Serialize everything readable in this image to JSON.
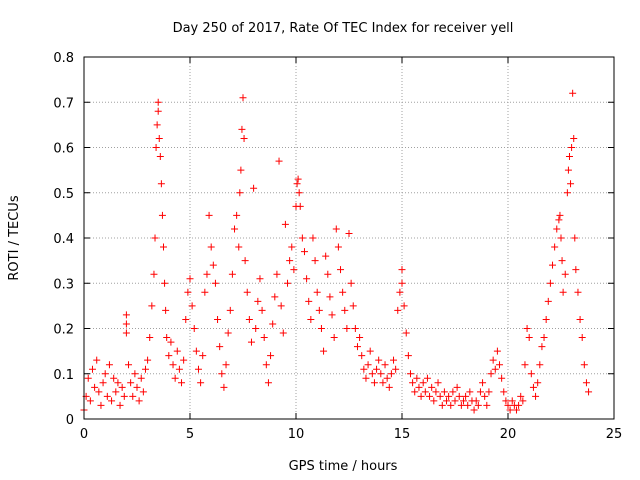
{
  "chart_data": {
    "type": "scatter",
    "title": "Day 250 of 2017, Rate Of TEC Index for receiver yell",
    "xlabel": "GPS time / hours",
    "ylabel": "ROTI / TECUs",
    "xlim": [
      0,
      25
    ],
    "ylim": [
      0,
      0.8
    ],
    "xticks": [
      0,
      5,
      10,
      15,
      20,
      25
    ],
    "xtick_labels": [
      "0",
      "5",
      "10",
      "15",
      "20",
      "25"
    ],
    "yticks": [
      0,
      0.1,
      0.2,
      0.3,
      0.4,
      0.5,
      0.6,
      0.7,
      0.8
    ],
    "ytick_labels": [
      "0",
      "0.1",
      "0.2",
      "0.3",
      "0.4",
      "0.5",
      "0.6",
      "0.7",
      "0.8"
    ],
    "grid": true,
    "marker": "plus",
    "color": "#ff0000",
    "series": [
      {
        "points": [
          [
            0.0,
            0.02
          ],
          [
            0.1,
            0.05
          ],
          [
            0.2,
            0.09
          ],
          [
            0.3,
            0.04
          ],
          [
            0.4,
            0.11
          ],
          [
            0.5,
            0.07
          ],
          [
            0.6,
            0.13
          ],
          [
            0.7,
            0.06
          ],
          [
            0.8,
            0.03
          ],
          [
            0.9,
            0.08
          ],
          [
            1.0,
            0.1
          ],
          [
            1.1,
            0.05
          ],
          [
            1.2,
            0.12
          ],
          [
            1.3,
            0.04
          ],
          [
            1.4,
            0.09
          ],
          [
            1.5,
            0.06
          ],
          [
            1.6,
            0.08
          ],
          [
            1.7,
            0.03
          ],
          [
            1.8,
            0.07
          ],
          [
            1.9,
            0.05
          ],
          [
            2.0,
            0.21
          ],
          [
            2.0,
            0.23
          ],
          [
            2.0,
            0.19
          ],
          [
            2.1,
            0.12
          ],
          [
            2.2,
            0.08
          ],
          [
            2.3,
            0.05
          ],
          [
            2.4,
            0.1
          ],
          [
            2.5,
            0.07
          ],
          [
            2.6,
            0.04
          ],
          [
            2.7,
            0.09
          ],
          [
            2.8,
            0.06
          ],
          [
            2.9,
            0.11
          ],
          [
            3.0,
            0.13
          ],
          [
            3.1,
            0.18
          ],
          [
            3.2,
            0.25
          ],
          [
            3.3,
            0.32
          ],
          [
            3.35,
            0.4
          ],
          [
            3.4,
            0.6
          ],
          [
            3.45,
            0.65
          ],
          [
            3.5,
            0.7
          ],
          [
            3.5,
            0.68
          ],
          [
            3.55,
            0.62
          ],
          [
            3.6,
            0.58
          ],
          [
            3.65,
            0.52
          ],
          [
            3.7,
            0.45
          ],
          [
            3.75,
            0.38
          ],
          [
            3.8,
            0.3
          ],
          [
            3.85,
            0.24
          ],
          [
            3.9,
            0.18
          ],
          [
            4.0,
            0.14
          ],
          [
            4.1,
            0.17
          ],
          [
            4.2,
            0.12
          ],
          [
            4.3,
            0.09
          ],
          [
            4.4,
            0.15
          ],
          [
            4.5,
            0.11
          ],
          [
            4.6,
            0.08
          ],
          [
            4.7,
            0.13
          ],
          [
            4.8,
            0.22
          ],
          [
            4.9,
            0.28
          ],
          [
            5.0,
            0.31
          ],
          [
            5.1,
            0.25
          ],
          [
            5.2,
            0.2
          ],
          [
            5.3,
            0.15
          ],
          [
            5.4,
            0.11
          ],
          [
            5.5,
            0.08
          ],
          [
            5.6,
            0.14
          ],
          [
            5.7,
            0.28
          ],
          [
            5.8,
            0.32
          ],
          [
            5.9,
            0.45
          ],
          [
            6.0,
            0.38
          ],
          [
            6.1,
            0.34
          ],
          [
            6.2,
            0.3
          ],
          [
            6.3,
            0.22
          ],
          [
            6.4,
            0.16
          ],
          [
            6.5,
            0.1
          ],
          [
            6.6,
            0.07
          ],
          [
            6.7,
            0.12
          ],
          [
            6.8,
            0.19
          ],
          [
            6.9,
            0.24
          ],
          [
            7.0,
            0.32
          ],
          [
            7.1,
            0.42
          ],
          [
            7.2,
            0.45
          ],
          [
            7.3,
            0.38
          ],
          [
            7.35,
            0.5
          ],
          [
            7.4,
            0.55
          ],
          [
            7.45,
            0.64
          ],
          [
            7.5,
            0.71
          ],
          [
            7.55,
            0.62
          ],
          [
            7.6,
            0.35
          ],
          [
            7.7,
            0.28
          ],
          [
            7.8,
            0.22
          ],
          [
            7.9,
            0.17
          ],
          [
            8.0,
            0.51
          ],
          [
            8.1,
            0.2
          ],
          [
            8.2,
            0.26
          ],
          [
            8.3,
            0.31
          ],
          [
            8.4,
            0.24
          ],
          [
            8.5,
            0.18
          ],
          [
            8.6,
            0.12
          ],
          [
            8.7,
            0.08
          ],
          [
            8.8,
            0.14
          ],
          [
            8.9,
            0.21
          ],
          [
            9.0,
            0.27
          ],
          [
            9.1,
            0.32
          ],
          [
            9.2,
            0.57
          ],
          [
            9.3,
            0.25
          ],
          [
            9.4,
            0.19
          ],
          [
            9.5,
            0.43
          ],
          [
            9.6,
            0.3
          ],
          [
            9.7,
            0.35
          ],
          [
            9.8,
            0.38
          ],
          [
            9.9,
            0.33
          ],
          [
            10.0,
            0.47
          ],
          [
            10.05,
            0.52
          ],
          [
            10.1,
            0.53
          ],
          [
            10.15,
            0.5
          ],
          [
            10.2,
            0.47
          ],
          [
            10.3,
            0.4
          ],
          [
            10.4,
            0.37
          ],
          [
            10.5,
            0.31
          ],
          [
            10.6,
            0.26
          ],
          [
            10.7,
            0.22
          ],
          [
            10.8,
            0.4
          ],
          [
            10.9,
            0.35
          ],
          [
            11.0,
            0.28
          ],
          [
            11.1,
            0.24
          ],
          [
            11.2,
            0.2
          ],
          [
            11.3,
            0.15
          ],
          [
            11.4,
            0.36
          ],
          [
            11.5,
            0.32
          ],
          [
            11.6,
            0.27
          ],
          [
            11.7,
            0.23
          ],
          [
            11.8,
            0.18
          ],
          [
            11.9,
            0.42
          ],
          [
            12.0,
            0.38
          ],
          [
            12.1,
            0.33
          ],
          [
            12.2,
            0.28
          ],
          [
            12.3,
            0.24
          ],
          [
            12.4,
            0.2
          ],
          [
            12.5,
            0.41
          ],
          [
            12.6,
            0.3
          ],
          [
            12.7,
            0.25
          ],
          [
            12.8,
            0.2
          ],
          [
            12.9,
            0.16
          ],
          [
            13.0,
            0.18
          ],
          [
            13.1,
            0.14
          ],
          [
            13.2,
            0.11
          ],
          [
            13.3,
            0.09
          ],
          [
            13.4,
            0.12
          ],
          [
            13.5,
            0.15
          ],
          [
            13.6,
            0.1
          ],
          [
            13.7,
            0.08
          ],
          [
            13.8,
            0.11
          ],
          [
            13.9,
            0.13
          ],
          [
            14.0,
            0.1
          ],
          [
            14.1,
            0.08
          ],
          [
            14.2,
            0.12
          ],
          [
            14.3,
            0.09
          ],
          [
            14.4,
            0.07
          ],
          [
            14.5,
            0.1
          ],
          [
            14.6,
            0.13
          ],
          [
            14.7,
            0.11
          ],
          [
            14.8,
            0.24
          ],
          [
            14.9,
            0.28
          ],
          [
            15.0,
            0.33
          ],
          [
            15.0,
            0.3
          ],
          [
            15.1,
            0.25
          ],
          [
            15.2,
            0.19
          ],
          [
            15.3,
            0.14
          ],
          [
            15.4,
            0.1
          ],
          [
            15.5,
            0.08
          ],
          [
            15.6,
            0.06
          ],
          [
            15.7,
            0.09
          ],
          [
            15.8,
            0.07
          ],
          [
            15.9,
            0.05
          ],
          [
            16.0,
            0.08
          ],
          [
            16.1,
            0.06
          ],
          [
            16.2,
            0.09
          ],
          [
            16.3,
            0.05
          ],
          [
            16.4,
            0.07
          ],
          [
            16.5,
            0.04
          ],
          [
            16.6,
            0.06
          ],
          [
            16.7,
            0.08
          ],
          [
            16.8,
            0.05
          ],
          [
            16.9,
            0.03
          ],
          [
            17.0,
            0.06
          ],
          [
            17.1,
            0.04
          ],
          [
            17.2,
            0.05
          ],
          [
            17.3,
            0.03
          ],
          [
            17.4,
            0.06
          ],
          [
            17.5,
            0.04
          ],
          [
            17.6,
            0.07
          ],
          [
            17.7,
            0.05
          ],
          [
            17.8,
            0.03
          ],
          [
            17.9,
            0.04
          ],
          [
            18.0,
            0.05
          ],
          [
            18.1,
            0.03
          ],
          [
            18.2,
            0.06
          ],
          [
            18.3,
            0.04
          ],
          [
            18.4,
            0.02
          ],
          [
            18.5,
            0.04
          ],
          [
            18.6,
            0.03
          ],
          [
            18.7,
            0.06
          ],
          [
            18.8,
            0.08
          ],
          [
            18.9,
            0.05
          ],
          [
            19.0,
            0.03
          ],
          [
            19.1,
            0.06
          ],
          [
            19.2,
            0.1
          ],
          [
            19.3,
            0.13
          ],
          [
            19.4,
            0.11
          ],
          [
            19.5,
            0.15
          ],
          [
            19.6,
            0.12
          ],
          [
            19.7,
            0.09
          ],
          [
            19.8,
            0.06
          ],
          [
            19.9,
            0.04
          ],
          [
            20.0,
            0.03
          ],
          [
            20.1,
            0.02
          ],
          [
            20.2,
            0.04
          ],
          [
            20.3,
            0.03
          ],
          [
            20.4,
            0.02
          ],
          [
            20.5,
            0.03
          ],
          [
            20.6,
            0.05
          ],
          [
            20.7,
            0.04
          ],
          [
            20.8,
            0.12
          ],
          [
            20.9,
            0.2
          ],
          [
            21.0,
            0.18
          ],
          [
            21.1,
            0.1
          ],
          [
            21.2,
            0.07
          ],
          [
            21.3,
            0.05
          ],
          [
            21.4,
            0.08
          ],
          [
            21.5,
            0.12
          ],
          [
            21.6,
            0.16
          ],
          [
            21.7,
            0.18
          ],
          [
            21.8,
            0.22
          ],
          [
            21.9,
            0.26
          ],
          [
            22.0,
            0.3
          ],
          [
            22.1,
            0.34
          ],
          [
            22.2,
            0.38
          ],
          [
            22.3,
            0.42
          ],
          [
            22.4,
            0.44
          ],
          [
            22.45,
            0.45
          ],
          [
            22.5,
            0.4
          ],
          [
            22.55,
            0.35
          ],
          [
            22.6,
            0.28
          ],
          [
            22.7,
            0.32
          ],
          [
            22.8,
            0.5
          ],
          [
            22.85,
            0.55
          ],
          [
            22.9,
            0.58
          ],
          [
            22.95,
            0.52
          ],
          [
            23.0,
            0.6
          ],
          [
            23.05,
            0.72
          ],
          [
            23.1,
            0.62
          ],
          [
            23.15,
            0.4
          ],
          [
            23.2,
            0.33
          ],
          [
            23.3,
            0.28
          ],
          [
            23.4,
            0.22
          ],
          [
            23.5,
            0.18
          ],
          [
            23.6,
            0.12
          ],
          [
            23.7,
            0.08
          ],
          [
            23.8,
            0.06
          ]
        ]
      }
    ]
  }
}
